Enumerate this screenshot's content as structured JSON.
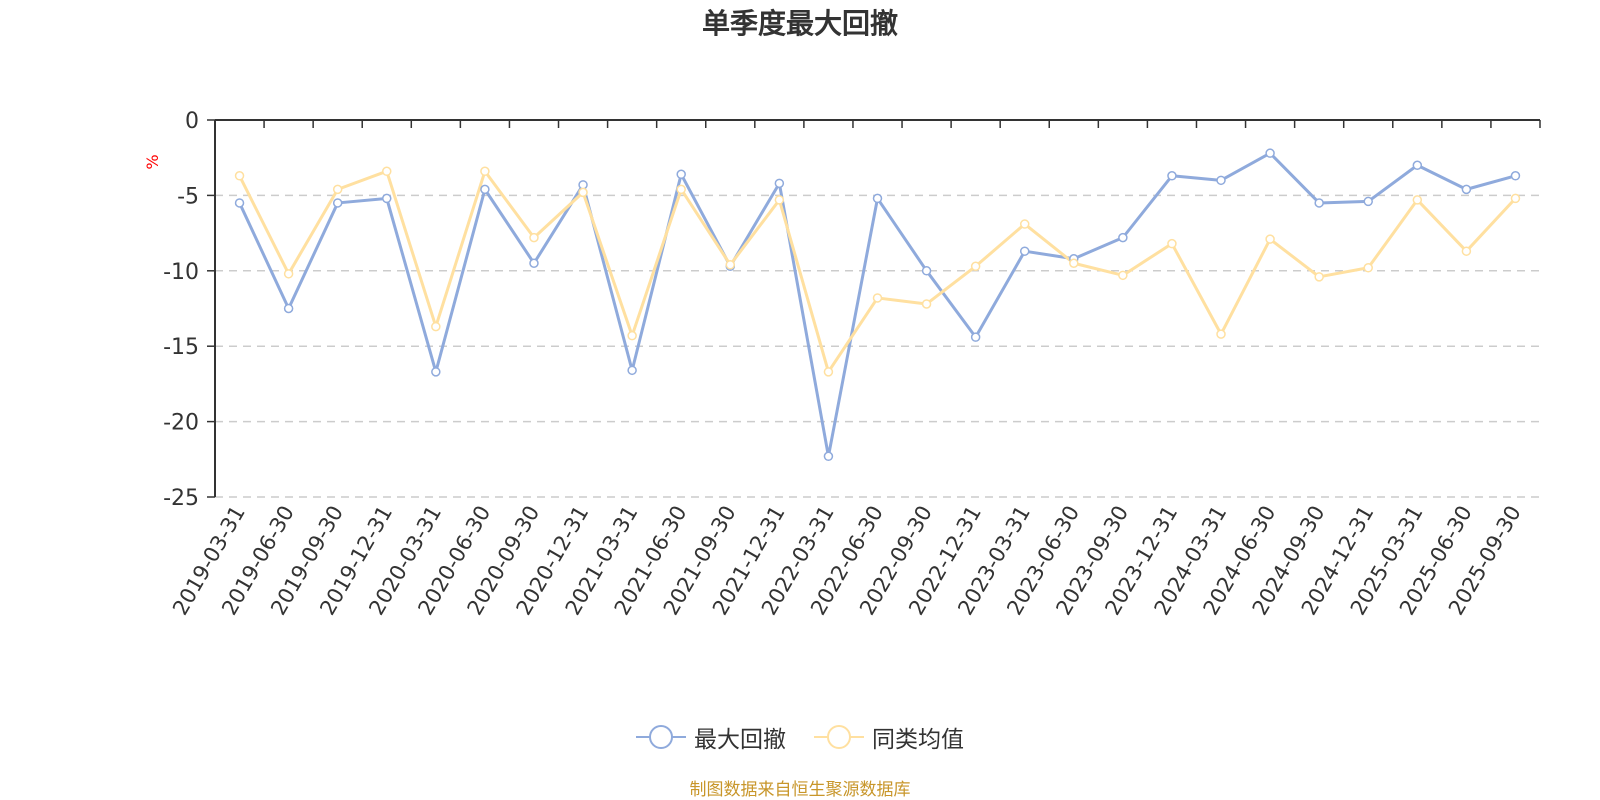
{
  "chart_data": {
    "type": "line",
    "title": "单季度最大回撤",
    "ylabel": "%",
    "ylim": [
      -25,
      0
    ],
    "yticks": [
      "0",
      "-5",
      "-10",
      "-15",
      "-20",
      "-25"
    ],
    "categories": [
      "2019-03-31",
      "2019-06-30",
      "2019-09-30",
      "2019-12-31",
      "2020-03-31",
      "2020-06-30",
      "2020-09-30",
      "2020-12-31",
      "2021-03-31",
      "2021-06-30",
      "2021-09-30",
      "2021-12-31",
      "2022-03-31",
      "2022-06-30",
      "2022-09-30",
      "2022-12-31",
      "2023-03-31",
      "2023-06-30",
      "2023-09-30",
      "2023-12-31",
      "2024-03-31",
      "2024-06-30",
      "2024-09-30",
      "2024-12-31",
      "2025-03-31",
      "2025-06-30",
      "2025-09-30"
    ],
    "series": [
      {
        "name": "最大回撤",
        "color": "#8faadc",
        "values": [
          -5.5,
          -12.5,
          -5.5,
          -5.2,
          -16.7,
          -4.6,
          -9.5,
          -4.3,
          -16.6,
          -3.6,
          -9.7,
          -4.2,
          -22.3,
          -5.2,
          -10.0,
          -14.4,
          -8.7,
          -9.2,
          -7.8,
          -3.7,
          -4.0,
          -2.2,
          -5.5,
          -5.4,
          -3.0,
          -4.6,
          -3.7
        ]
      },
      {
        "name": "同类均值",
        "color": "#ffe0a0",
        "values": [
          -3.7,
          -10.2,
          -4.6,
          -3.4,
          -13.7,
          -3.4,
          -7.8,
          -4.8,
          -14.3,
          -4.6,
          -9.6,
          -5.3,
          -16.7,
          -11.8,
          -12.2,
          -9.7,
          -6.9,
          -9.5,
          -10.3,
          -8.2,
          -14.2,
          -7.9,
          -10.4,
          -9.8,
          -5.3,
          -8.7,
          -5.2
        ]
      }
    ],
    "grid": true,
    "legend_position": "bottom-center"
  },
  "source_text": "制图数据来自恒生聚源数据库"
}
